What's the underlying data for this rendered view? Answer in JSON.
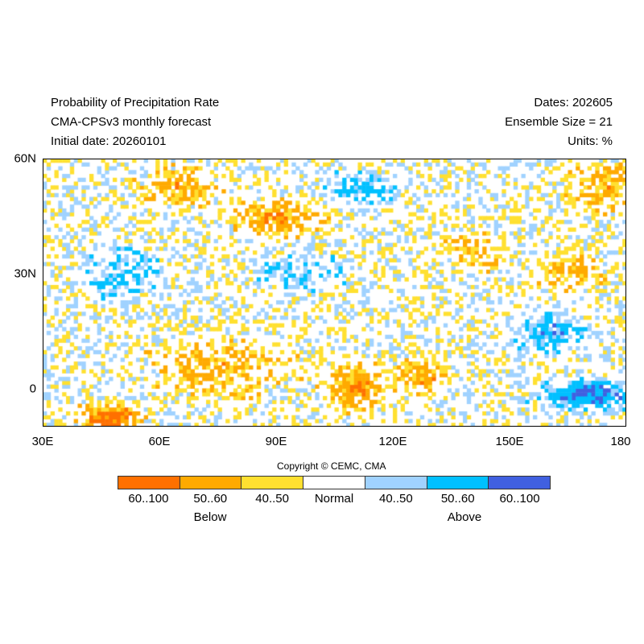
{
  "header": {
    "title": "Probability of Precipitation Rate",
    "model": "CMA-CPSv3 monthly forecast",
    "initial": "Initial date: 20260101",
    "dates": "Dates: 202605",
    "ensemble": "Ensemble Size = 21",
    "units": "Units: %"
  },
  "chart_data": {
    "type": "heatmap",
    "title": "Probability of Precipitation Rate",
    "xlim": [
      30,
      180
    ],
    "ylim": [
      -10,
      60
    ],
    "x_ticks": [
      "30E",
      "60E",
      "90E",
      "120E",
      "150E",
      "180"
    ],
    "y_ticks": [
      "60N",
      "30N",
      "0"
    ],
    "categories": [
      {
        "label": "60..100",
        "group": "Below",
        "color": "#ff7000"
      },
      {
        "label": "50..60",
        "group": "Below",
        "color": "#ffaa00"
      },
      {
        "label": "40..50",
        "group": "Below",
        "color": "#ffe030"
      },
      {
        "label": "Normal",
        "group": "",
        "color": "#ffffff"
      },
      {
        "label": "40..50",
        "group": "Above",
        "color": "#a0d2ff"
      },
      {
        "label": "50..60",
        "group": "Above",
        "color": "#00c0ff"
      },
      {
        "label": "60..100",
        "group": "Above",
        "color": "#4060e0"
      }
    ],
    "group_labels": [
      "Below",
      "Above"
    ]
  },
  "copyright": "Copyright © CEMC, CMA"
}
